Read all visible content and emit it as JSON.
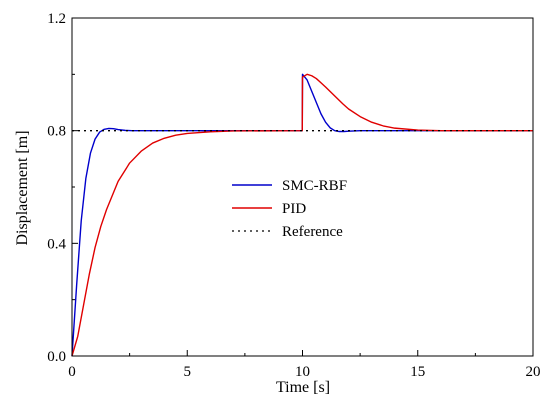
{
  "chart_data": {
    "type": "line",
    "xlabel": "Time [s]",
    "ylabel": "Displacement [m]",
    "xlim": [
      0,
      20
    ],
    "ylim": [
      0.0,
      1.2
    ],
    "xticks": [
      0,
      5,
      10,
      15,
      20
    ],
    "xtick_labels": [
      "0",
      "5",
      "10",
      "15",
      "20"
    ],
    "yticks": [
      0.0,
      0.4,
      0.8,
      1.2
    ],
    "ytick_labels": [
      "0.0",
      "0.4",
      "0.8",
      "1.2"
    ],
    "grid": false,
    "legend_position": "center",
    "series": [
      {
        "name": "SMC-RBF",
        "color": "#0000cc",
        "style": "solid",
        "x": [
          0,
          0.2,
          0.4,
          0.6,
          0.8,
          1.0,
          1.2,
          1.4,
          1.6,
          1.8,
          2.0,
          2.3,
          2.6,
          3.0,
          4.0,
          6.0,
          9.99,
          10.0,
          10.2,
          10.4,
          10.6,
          10.8,
          11.0,
          11.2,
          11.4,
          11.6,
          11.8,
          12.0,
          12.5,
          13.0,
          14.0,
          20.0
        ],
        "y": [
          0.0,
          0.25,
          0.48,
          0.63,
          0.72,
          0.77,
          0.795,
          0.805,
          0.808,
          0.807,
          0.804,
          0.801,
          0.8,
          0.8,
          0.8,
          0.8,
          0.8,
          1.0,
          0.98,
          0.94,
          0.9,
          0.86,
          0.83,
          0.81,
          0.8,
          0.797,
          0.797,
          0.798,
          0.8,
          0.8,
          0.8,
          0.8
        ]
      },
      {
        "name": "PID",
        "color": "#e00000",
        "style": "solid",
        "x": [
          0,
          0.25,
          0.5,
          0.75,
          1.0,
          1.25,
          1.5,
          2.0,
          2.5,
          3.0,
          3.5,
          4.0,
          4.5,
          5.0,
          6.0,
          7.0,
          9.99,
          10.0,
          10.2,
          10.4,
          10.6,
          10.8,
          11.0,
          11.25,
          11.5,
          11.75,
          12.0,
          12.5,
          13.0,
          13.5,
          14.0,
          15.0,
          16.0,
          20.0
        ],
        "y": [
          0.0,
          0.07,
          0.18,
          0.29,
          0.385,
          0.46,
          0.52,
          0.62,
          0.685,
          0.727,
          0.756,
          0.773,
          0.784,
          0.79,
          0.796,
          0.799,
          0.8,
          0.99,
          1.0,
          0.995,
          0.985,
          0.97,
          0.955,
          0.935,
          0.915,
          0.895,
          0.877,
          0.85,
          0.83,
          0.817,
          0.809,
          0.802,
          0.8,
          0.8
        ]
      },
      {
        "name": "Reference",
        "color": "#000000",
        "style": "dotted",
        "x": [
          0,
          20
        ],
        "y": [
          0.8,
          0.8
        ]
      }
    ]
  }
}
